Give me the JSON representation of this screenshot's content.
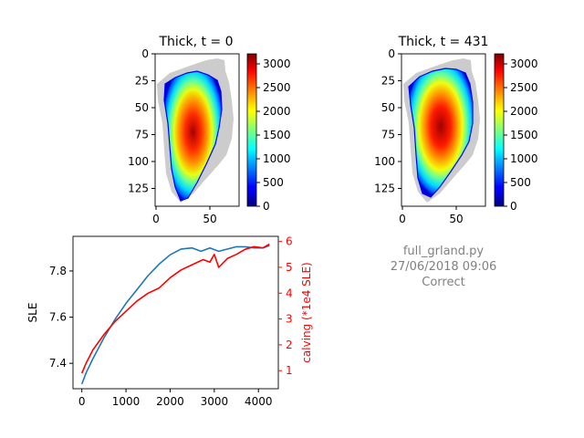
{
  "chart_data": [
    {
      "type": "heatmap",
      "title": "Thick, t = 0",
      "x_ticks": [
        0,
        50
      ],
      "y_ticks": [
        0,
        25,
        50,
        75,
        100,
        125
      ],
      "colorbar_ticks": [
        0,
        500,
        1000,
        1500,
        2000,
        2500,
        3000
      ],
      "value_range": [
        0,
        3200
      ],
      "colormap": "jet",
      "mask_color": "#cccccc"
    },
    {
      "type": "heatmap",
      "title": "Thick, t = 431",
      "x_ticks": [
        0,
        50
      ],
      "y_ticks": [
        0,
        25,
        50,
        75,
        100,
        125
      ],
      "colorbar_ticks": [
        0,
        500,
        1000,
        1500,
        2000,
        2500,
        3000
      ],
      "value_range": [
        0,
        3200
      ],
      "colormap": "jet",
      "mask_color": "#cccccc"
    },
    {
      "type": "line",
      "xlabel": "",
      "ylabel": "SLE",
      "ylabel_right": "calving (*1e4 SLE)",
      "x_ticks": [
        0,
        1000,
        2000,
        3000,
        4000
      ],
      "y_ticks": [
        "7.4",
        "7.6",
        "7.8"
      ],
      "y_right_ticks": [
        1,
        2,
        3,
        4,
        5,
        6
      ],
      "xlim": [
        -200,
        4450
      ],
      "ylim": [
        7.29,
        7.95
      ],
      "ylim_right": [
        0.3,
        6.2
      ],
      "series": [
        {
          "axis": "left",
          "color": "#1f77b4",
          "x": [
            0,
            100,
            250,
            500,
            750,
            1000,
            1250,
            1500,
            1750,
            2000,
            2250,
            2500,
            2700,
            2900,
            3100,
            3300,
            3500,
            3700,
            3900,
            4100,
            4250
          ],
          "values": [
            7.31,
            7.36,
            7.42,
            7.51,
            7.59,
            7.66,
            7.72,
            7.78,
            7.83,
            7.87,
            7.895,
            7.9,
            7.885,
            7.9,
            7.885,
            7.895,
            7.905,
            7.905,
            7.9,
            7.9,
            7.91
          ]
        },
        {
          "axis": "right",
          "color": "#ff0000",
          "x": [
            0,
            100,
            250,
            500,
            750,
            1000,
            1250,
            1500,
            1750,
            2000,
            2250,
            2500,
            2750,
            2900,
            3000,
            3100,
            3300,
            3500,
            3700,
            3900,
            4100,
            4250
          ],
          "values": [
            0.9,
            1.3,
            1.8,
            2.4,
            2.9,
            3.3,
            3.7,
            4.0,
            4.2,
            4.6,
            4.9,
            5.1,
            5.3,
            5.2,
            5.5,
            5.0,
            5.35,
            5.5,
            5.7,
            5.8,
            5.75,
            5.9
          ]
        }
      ]
    }
  ],
  "info": {
    "script": "full_grland.py",
    "datetime": "27/06/2018 09:06",
    "status": "Correct"
  },
  "colors": {
    "info_text": "#808080",
    "right_axis": "#ff0000",
    "sle_line": "#1f77b4"
  }
}
